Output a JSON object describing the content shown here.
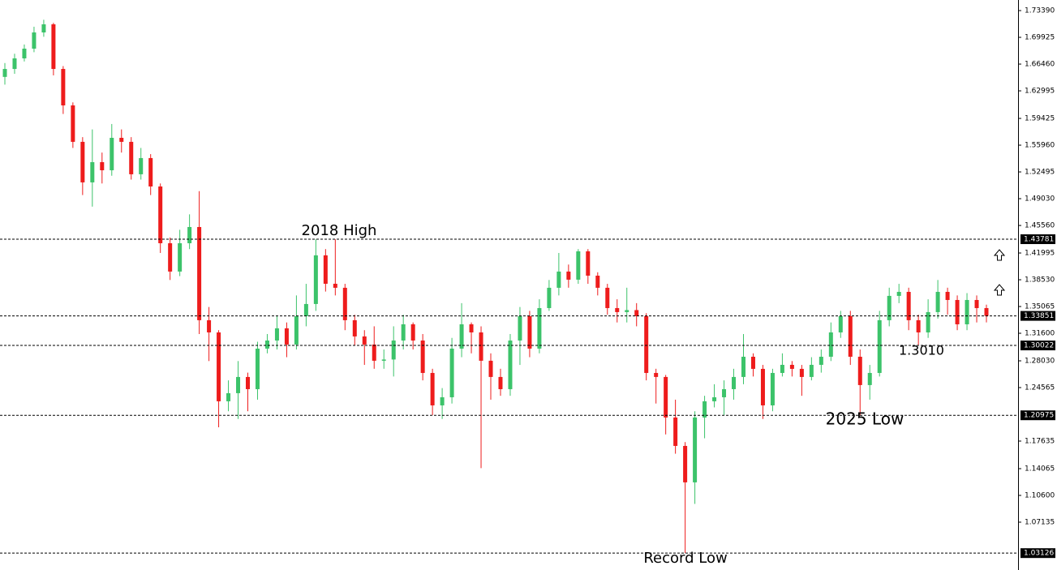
{
  "chart_data": {
    "type": "candlestick",
    "up_color": "#3cc36a",
    "down_color": "#ee1c1c",
    "ylim": [
      1.0094,
      1.7476
    ],
    "yticks": [
      {
        "value": 1.7339,
        "label": "1.73390"
      },
      {
        "value": 1.69925,
        "label": "1.69925"
      },
      {
        "value": 1.6646,
        "label": "1.66460"
      },
      {
        "value": 1.62995,
        "label": "1.62995"
      },
      {
        "value": 1.59425,
        "label": "1.59425"
      },
      {
        "value": 1.5596,
        "label": "1.55960"
      },
      {
        "value": 1.52495,
        "label": "1.52495"
      },
      {
        "value": 1.4903,
        "label": "1.49030"
      },
      {
        "value": 1.4556,
        "label": "1.45560"
      },
      {
        "value": 1.41995,
        "label": "1.41995"
      },
      {
        "value": 1.3853,
        "label": "1.38530"
      },
      {
        "value": 1.35065,
        "label": "1.35065"
      },
      {
        "value": 1.316,
        "label": "1.31600"
      },
      {
        "value": 1.2803,
        "label": "1.28030"
      },
      {
        "value": 1.24565,
        "label": "1.24565"
      },
      {
        "value": 1.17635,
        "label": "1.17635"
      },
      {
        "value": 1.14065,
        "label": "1.14065"
      },
      {
        "value": 1.106,
        "label": "1.10600"
      },
      {
        "value": 1.07135,
        "label": "1.07135"
      }
    ],
    "levels": [
      {
        "value": 1.43781,
        "label": "1.43781"
      },
      {
        "value": 1.33851,
        "label": "1.33851"
      },
      {
        "value": 1.30022,
        "label": "1.30022"
      },
      {
        "value": 1.20975,
        "label": "1.20975"
      },
      {
        "value": 1.03126,
        "label": "1.03126"
      }
    ],
    "annotations": [
      "2018 High",
      "Record Low",
      "2025 Low",
      "1.3010"
    ],
    "open": [
      1.648,
      1.6583,
      1.672,
      1.6846,
      1.7056,
      1.7161,
      1.6583,
      1.6111,
      1.5639,
      1.5114,
      1.5376,
      1.5271,
      1.5691,
      1.5639,
      1.5219,
      1.5429,
      1.5061,
      1.4326,
      1.3959,
      1.4326,
      1.4536,
      1.3329,
      1.3171,
      1.2279,
      1.2384,
      1.2594,
      1.2436,
      1.2961,
      1.3066,
      1.3224,
      1.3014,
      1.3381,
      1.3539,
      1.4169,
      1.3801,
      1.3749,
      1.3329,
      1.3119,
      1.3014,
      1.2804,
      1.282,
      1.3066,
      1.3276,
      1.3066,
      1.2646,
      1.2226,
      1.2331,
      1.2961,
      1.3276,
      1.3171,
      1.2804,
      1.2594,
      1.2436,
      1.3066,
      1.3381,
      1.2961,
      1.3486,
      1.3749,
      1.3959,
      1.3854,
      1.4221,
      1.3906,
      1.3749,
      1.3486,
      1.3434,
      1.346,
      1.3381,
      1.2646,
      1.2594,
      1.2069,
      1.1701,
      1.1229,
      1.2069,
      1.2279,
      1.2331,
      1.2436,
      1.2594,
      1.2856,
      1.2699,
      1.2226,
      1.2646,
      1.2751,
      1.2699,
      1.2594,
      1.2751,
      1.2856,
      1.3171,
      1.3381,
      1.2856,
      1.2489,
      1.2646,
      1.3329,
      1.3644,
      1.3696,
      1.3329,
      1.3171,
      1.3434,
      1.3696,
      1.3591,
      1.3276,
      1.3591,
      1.3486
    ],
    "high": [
      1.666,
      1.678,
      1.69,
      1.713,
      1.722,
      1.718,
      1.662,
      1.615,
      1.57,
      1.58,
      1.55,
      1.587,
      1.58,
      1.57,
      1.556,
      1.548,
      1.51,
      1.44,
      1.45,
      1.47,
      1.5,
      1.35,
      1.32,
      1.255,
      1.28,
      1.265,
      1.305,
      1.315,
      1.338,
      1.33,
      1.365,
      1.38,
      1.4378,
      1.425,
      1.4378,
      1.38,
      1.34,
      1.32,
      1.325,
      1.295,
      1.325,
      1.34,
      1.33,
      1.315,
      1.27,
      1.245,
      1.31,
      1.355,
      1.33,
      1.325,
      1.29,
      1.27,
      1.315,
      1.35,
      1.345,
      1.36,
      1.385,
      1.42,
      1.405,
      1.425,
      1.425,
      1.395,
      1.38,
      1.36,
      1.375,
      1.355,
      1.342,
      1.27,
      1.262,
      1.23,
      1.175,
      1.215,
      1.235,
      1.25,
      1.255,
      1.27,
      1.315,
      1.29,
      1.275,
      1.27,
      1.29,
      1.28,
      1.275,
      1.285,
      1.295,
      1.33,
      1.345,
      1.345,
      1.295,
      1.275,
      1.345,
      1.375,
      1.38,
      1.375,
      1.34,
      1.36,
      1.385,
      1.375,
      1.365,
      1.368,
      1.365,
      1.353
    ],
    "low": [
      1.638,
      1.652,
      1.668,
      1.68,
      1.7,
      1.65,
      1.6,
      1.556,
      1.495,
      1.48,
      1.51,
      1.52,
      1.55,
      1.515,
      1.515,
      1.495,
      1.42,
      1.385,
      1.39,
      1.425,
      1.315,
      1.28,
      1.1942,
      1.215,
      1.205,
      1.215,
      1.23,
      1.29,
      1.295,
      1.285,
      1.295,
      1.325,
      1.345,
      1.37,
      1.365,
      1.32,
      1.3,
      1.275,
      1.27,
      1.27,
      1.26,
      1.295,
      1.295,
      1.255,
      1.21,
      1.205,
      1.225,
      1.285,
      1.29,
      1.1413,
      1.23,
      1.235,
      1.235,
      1.275,
      1.285,
      1.29,
      1.345,
      1.365,
      1.375,
      1.38,
      1.38,
      1.365,
      1.34,
      1.33,
      1.33,
      1.325,
      1.255,
      1.225,
      1.185,
      1.16,
      1.0313,
      1.095,
      1.18,
      1.22,
      1.21,
      1.23,
      1.25,
      1.26,
      1.205,
      1.215,
      1.26,
      1.26,
      1.235,
      1.255,
      1.265,
      1.28,
      1.31,
      1.275,
      1.2098,
      1.23,
      1.26,
      1.325,
      1.355,
      1.32,
      1.301,
      1.31,
      1.335,
      1.34,
      1.32,
      1.32,
      1.33,
      1.33
    ],
    "close": [
      1.6583,
      1.672,
      1.6846,
      1.7056,
      1.7161,
      1.6583,
      1.6111,
      1.5639,
      1.5114,
      1.5376,
      1.5271,
      1.5691,
      1.5639,
      1.5219,
      1.5429,
      1.5061,
      1.4326,
      1.3959,
      1.4326,
      1.4536,
      1.3329,
      1.3171,
      1.2279,
      1.2384,
      1.2594,
      1.2436,
      1.2961,
      1.3066,
      1.3224,
      1.3014,
      1.3381,
      1.3539,
      1.4169,
      1.3801,
      1.3749,
      1.3329,
      1.3119,
      1.3014,
      1.2804,
      1.282,
      1.3066,
      1.3276,
      1.3066,
      1.2646,
      1.2226,
      1.2331,
      1.2961,
      1.3276,
      1.3171,
      1.2804,
      1.2594,
      1.2436,
      1.3066,
      1.3381,
      1.2961,
      1.3486,
      1.3749,
      1.3959,
      1.3854,
      1.4221,
      1.3906,
      1.3749,
      1.3486,
      1.3434,
      1.346,
      1.3381,
      1.2646,
      1.2594,
      1.2069,
      1.1701,
      1.1229,
      1.2069,
      1.2279,
      1.2331,
      1.2436,
      1.2594,
      1.2856,
      1.2699,
      1.2226,
      1.2646,
      1.2751,
      1.2699,
      1.2594,
      1.2751,
      1.2856,
      1.3171,
      1.3381,
      1.2856,
      1.2489,
      1.2646,
      1.3329,
      1.3644,
      1.3696,
      1.3329,
      1.3171,
      1.3434,
      1.3696,
      1.3591,
      1.3276,
      1.3591,
      1.3486,
      1.3385
    ]
  }
}
